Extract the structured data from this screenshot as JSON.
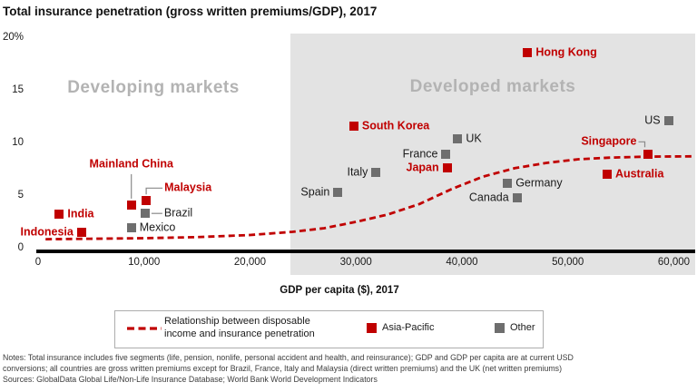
{
  "header": {
    "title": "Total insurance penetration (gross written premiums/GDP), 2017"
  },
  "zones": {
    "developing": "Developing markets",
    "developed": "Developed markets"
  },
  "legend": {
    "trend_line1": "Relationship between disposable",
    "trend_line2": "income and insurance penetration",
    "asia_pacific": "Asia-Pacific",
    "other": "Other"
  },
  "notes": {
    "line1": "Notes: Total insurance includes five segments (life, pension, nonlife, personal accident and health, and reinsurance); GDP and GDP per capita are at current USD",
    "line2": "conversions; all countries are gross written premiums except for Brazil, France, Italy and Malaysia (direct written premiums) and the UK (net written premiums)",
    "line3": "Sources: GlobalData Global Life/Non-Life Insurance Database; World Bank World Development Indicators"
  },
  "colors": {
    "asia_pacific": "#c00000",
    "other": "#6e6e6e",
    "band": "#e3e3e3",
    "zone_text": "#b3b3b3",
    "leader": "#8a8a8a"
  },
  "chart_data": {
    "type": "scatter",
    "title": "Total insurance penetration (gross written premiums/GDP), 2017",
    "xlabel": "GDP per capita ($), 2017",
    "ylabel": "",
    "xlim": [
      0,
      62000
    ],
    "ylim": [
      0,
      20
    ],
    "grid": false,
    "x_ticks": [
      {
        "label": "0",
        "value": 0
      },
      {
        "label": "10,000",
        "value": 10000
      },
      {
        "label": "20,000",
        "value": 20000
      },
      {
        "label": "30,000",
        "value": 30000
      },
      {
        "label": "40,000",
        "value": 40000
      },
      {
        "label": "50,000",
        "value": 50000
      },
      {
        "label": "60,000",
        "value": 60000
      }
    ],
    "y_ticks": [
      {
        "label": "20%",
        "value": 20
      },
      {
        "label": "15",
        "value": 15
      },
      {
        "label": "10",
        "value": 10
      },
      {
        "label": "5",
        "value": 5
      },
      {
        "label": "0",
        "value": 0
      }
    ],
    "regions": [
      {
        "name": "Developing markets",
        "x_range": [
          0,
          23800
        ]
      },
      {
        "name": "Developed markets",
        "x_range": [
          23800,
          62000
        ]
      }
    ],
    "series": [
      {
        "name": "Asia-Pacific",
        "color": "#c00000",
        "points": [
          {
            "label": "India",
            "gdp": 2000,
            "pen": 3.2,
            "label_pos": "right"
          },
          {
            "label": "Indonesia",
            "gdp": 4100,
            "pen": 1.5,
            "label_pos": "left"
          },
          {
            "label": "Mainland China",
            "gdp": 8800,
            "pen": 4.1,
            "label_pos": "leader-above"
          },
          {
            "label": "Malaysia",
            "gdp": 10200,
            "pen": 4.5,
            "label_pos": "leader-elbow-right"
          },
          {
            "label": "South Korea",
            "gdp": 29800,
            "pen": 11.6,
            "label_pos": "right"
          },
          {
            "label": "Japan",
            "gdp": 38600,
            "pen": 7.6,
            "label_pos": "left"
          },
          {
            "label": "Hong Kong",
            "gdp": 46200,
            "pen": 18.6,
            "label_pos": "right"
          },
          {
            "label": "Australia",
            "gdp": 53700,
            "pen": 7.0,
            "label_pos": "right"
          },
          {
            "label": "Singapore",
            "gdp": 57600,
            "pen": 8.9,
            "label_pos": "leader-elbow-left"
          }
        ]
      },
      {
        "name": "Other",
        "color": "#6e6e6e",
        "points": [
          {
            "label": "Mexico",
            "gdp": 8800,
            "pen": 1.9,
            "label_pos": "right"
          },
          {
            "label": "Brazil",
            "gdp": 10100,
            "pen": 3.3,
            "label_pos": "leader-line-right"
          },
          {
            "label": "Spain",
            "gdp": 28300,
            "pen": 5.3,
            "label_pos": "left"
          },
          {
            "label": "Italy",
            "gdp": 31900,
            "pen": 7.2,
            "label_pos": "left"
          },
          {
            "label": "France",
            "gdp": 38500,
            "pen": 8.9,
            "label_pos": "left"
          },
          {
            "label": "UK",
            "gdp": 39600,
            "pen": 10.4,
            "label_pos": "right"
          },
          {
            "label": "Germany",
            "gdp": 44300,
            "pen": 6.2,
            "label_pos": "right"
          },
          {
            "label": "Canada",
            "gdp": 45200,
            "pen": 4.8,
            "label_pos": "left"
          },
          {
            "label": "US",
            "gdp": 59500,
            "pen": 12.1,
            "label_pos": "left"
          }
        ]
      }
    ],
    "trend": {
      "name": "Relationship between disposable income and insurance penetration",
      "style": "dashed",
      "color": "#c00000",
      "points": [
        [
          700,
          0.85
        ],
        [
          5000,
          0.9
        ],
        [
          10000,
          0.95
        ],
        [
          15000,
          1.05
        ],
        [
          20000,
          1.25
        ],
        [
          24000,
          1.55
        ],
        [
          27000,
          1.9
        ],
        [
          30000,
          2.5
        ],
        [
          33000,
          3.2
        ],
        [
          36000,
          4.2
        ],
        [
          39000,
          5.6
        ],
        [
          42000,
          6.8
        ],
        [
          45000,
          7.6
        ],
        [
          48000,
          8.1
        ],
        [
          51000,
          8.45
        ],
        [
          54000,
          8.6
        ],
        [
          57500,
          8.7
        ],
        [
          61800,
          8.72
        ]
      ]
    }
  }
}
